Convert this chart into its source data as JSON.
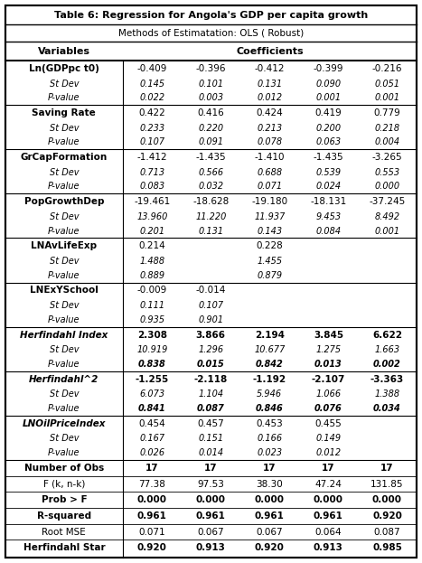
{
  "title": "Table 6: Regression for Angola's GDP per capita growth",
  "subtitle": "Methods of Estimatation: OLS ( Robust)",
  "rows": [
    {
      "var": "Ln(GDPpc t0)",
      "var_style": "bold",
      "vals": [
        "-0.409",
        "-0.396",
        "-0.412",
        "-0.399",
        "-0.216"
      ],
      "vals_style": "normal",
      "sub": [
        {
          "label": "St Dev",
          "vals": [
            "0.145",
            "0.101",
            "0.131",
            "0.090",
            "0.051"
          ],
          "vals_style": "normal"
        },
        {
          "label": "P-value",
          "vals": [
            "0.022",
            "0.003",
            "0.012",
            "0.001",
            "0.001"
          ],
          "vals_style": "normal"
        }
      ]
    },
    {
      "var": "Saving Rate",
      "var_style": "bold",
      "vals": [
        "0.422",
        "0.416",
        "0.424",
        "0.419",
        "0.779"
      ],
      "vals_style": "normal",
      "sub": [
        {
          "label": "St Dev",
          "vals": [
            "0.233",
            "0.220",
            "0.213",
            "0.200",
            "0.218"
          ],
          "vals_style": "normal"
        },
        {
          "label": "P-value",
          "vals": [
            "0.107",
            "0.091",
            "0.078",
            "0.063",
            "0.004"
          ],
          "vals_style": "normal"
        }
      ]
    },
    {
      "var": "GrCapFormation",
      "var_style": "bold",
      "vals": [
        "-1.412",
        "-1.435",
        "-1.410",
        "-1.435",
        "-3.265"
      ],
      "vals_style": "normal",
      "sub": [
        {
          "label": "St Dev",
          "vals": [
            "0.713",
            "0.566",
            "0.688",
            "0.539",
            "0.553"
          ],
          "vals_style": "normal"
        },
        {
          "label": "P-value",
          "vals": [
            "0.083",
            "0.032",
            "0.071",
            "0.024",
            "0.000"
          ],
          "vals_style": "normal"
        }
      ]
    },
    {
      "var": "PopGrowthDep",
      "var_style": "bold",
      "vals": [
        "-19.461",
        "-18.628",
        "-19.180",
        "-18.131",
        "-37.245"
      ],
      "vals_style": "normal",
      "sub": [
        {
          "label": "St Dev",
          "vals": [
            "13.960",
            "11.220",
            "11.937",
            "9.453",
            "8.492"
          ],
          "vals_style": "normal"
        },
        {
          "label": "P-value",
          "vals": [
            "0.201",
            "0.131",
            "0.143",
            "0.084",
            "0.001"
          ],
          "vals_style": "normal"
        }
      ]
    },
    {
      "var": "LNAvLifeExp",
      "var_style": "bold",
      "vals": [
        "0.214",
        "",
        "0.228",
        "",
        ""
      ],
      "vals_style": "normal",
      "sub": [
        {
          "label": "St Dev",
          "vals": [
            "1.488",
            "",
            "1.455",
            "",
            ""
          ],
          "vals_style": "normal"
        },
        {
          "label": "P-value",
          "vals": [
            "0.889",
            "",
            "0.879",
            "",
            ""
          ],
          "vals_style": "normal"
        }
      ]
    },
    {
      "var": "LNExYSchool",
      "var_style": "bold",
      "vals": [
        "-0.009",
        "-0.014",
        "",
        "",
        ""
      ],
      "vals_style": "normal",
      "sub": [
        {
          "label": "St Dev",
          "vals": [
            "0.111",
            "0.107",
            "",
            "",
            ""
          ],
          "vals_style": "normal"
        },
        {
          "label": "P-value",
          "vals": [
            "0.935",
            "0.901",
            "",
            "",
            ""
          ],
          "vals_style": "normal"
        }
      ]
    },
    {
      "var": "Herfindahl Index",
      "var_style": "bold_italic",
      "vals": [
        "2.308",
        "3.866",
        "2.194",
        "3.845",
        "6.622"
      ],
      "vals_style": "bold",
      "sub": [
        {
          "label": "St Dev",
          "vals": [
            "10.919",
            "1.296",
            "10.677",
            "1.275",
            "1.663"
          ],
          "vals_style": "normal"
        },
        {
          "label": "P-value",
          "vals": [
            "0.838",
            "0.015",
            "0.842",
            "0.013",
            "0.002"
          ],
          "vals_style": "bold"
        }
      ]
    },
    {
      "var": "Herfindahl^2",
      "var_style": "bold_italic",
      "vals": [
        "-1.255",
        "-2.118",
        "-1.192",
        "-2.107",
        "-3.363"
      ],
      "vals_style": "bold",
      "sub": [
        {
          "label": "St Dev",
          "vals": [
            "6.073",
            "1.104",
            "5.946",
            "1.066",
            "1.388"
          ],
          "vals_style": "normal"
        },
        {
          "label": "P-value",
          "vals": [
            "0.841",
            "0.087",
            "0.846",
            "0.076",
            "0.034"
          ],
          "vals_style": "bold"
        }
      ]
    },
    {
      "var": "LNOilPriceIndex",
      "var_style": "bold_italic",
      "vals": [
        "0.454",
        "0.457",
        "0.453",
        "0.455",
        ""
      ],
      "vals_style": "normal",
      "sub": [
        {
          "label": "St Dev",
          "vals": [
            "0.167",
            "0.151",
            "0.166",
            "0.149",
            ""
          ],
          "vals_style": "normal"
        },
        {
          "label": "P-value",
          "vals": [
            "0.026",
            "0.014",
            "0.023",
            "0.012",
            ""
          ],
          "vals_style": "normal"
        }
      ]
    }
  ],
  "footer": [
    {
      "label": "Number of Obs",
      "vals": [
        "17",
        "17",
        "17",
        "17",
        "17"
      ],
      "label_style": "bold",
      "vals_style": "bold"
    },
    {
      "label": "F (k, n-k)",
      "vals": [
        "77.38",
        "97.53",
        "38.30",
        "47.24",
        "131.85"
      ],
      "label_style": "normal",
      "vals_style": "normal"
    },
    {
      "label": "Prob > F",
      "vals": [
        "0.000",
        "0.000",
        "0.000",
        "0.000",
        "0.000"
      ],
      "label_style": "bold",
      "vals_style": "bold"
    },
    {
      "label": "R-squared",
      "vals": [
        "0.961",
        "0.961",
        "0.961",
        "0.961",
        "0.920"
      ],
      "label_style": "bold",
      "vals_style": "bold"
    },
    {
      "label": "Root MSE",
      "vals": [
        "0.071",
        "0.067",
        "0.067",
        "0.064",
        "0.087"
      ],
      "label_style": "normal",
      "vals_style": "normal"
    },
    {
      "label": "Herfindahl Star",
      "vals": [
        "0.920",
        "0.913",
        "0.920",
        "0.913",
        "0.985"
      ],
      "label_style": "bold",
      "vals_style": "bold"
    }
  ]
}
